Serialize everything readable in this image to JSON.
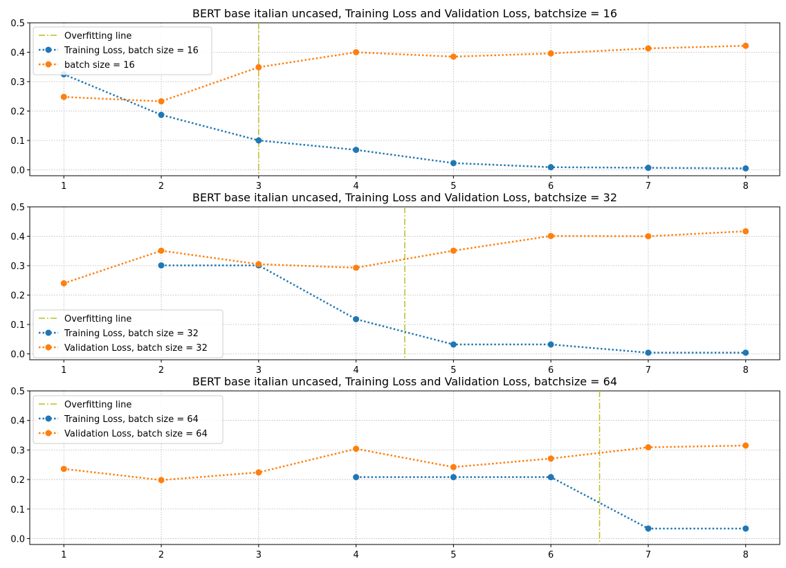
{
  "chart_data": [
    {
      "type": "line",
      "title": "BERT base italian uncased, Training Loss and Validation Loss, batchsize = 16",
      "xlabel": "",
      "ylabel": "",
      "xlim": [
        0.65,
        8.35
      ],
      "ylim": [
        -0.02,
        0.5
      ],
      "xticks": [
        1,
        2,
        3,
        4,
        5,
        6,
        7,
        8
      ],
      "yticks": [
        0.0,
        0.1,
        0.2,
        0.3,
        0.4,
        0.5
      ],
      "grid": true,
      "legend_position": "top-left",
      "overfitting_line": {
        "name": "Overfitting line",
        "x": 3,
        "color": "#bcbd22"
      },
      "series": [
        {
          "name": "Training Loss, batch size = 16",
          "color": "#1f77b4",
          "x": [
            1,
            2,
            3,
            4,
            5,
            6,
            7,
            8
          ],
          "values": [
            0.325,
            0.187,
            0.1,
            0.068,
            0.023,
            0.009,
            0.007,
            0.005
          ]
        },
        {
          "name": "batch size = 16",
          "color": "#ff7f0e",
          "x": [
            1,
            2,
            3,
            4,
            5,
            6,
            7,
            8
          ],
          "values": [
            0.248,
            0.233,
            0.349,
            0.4,
            0.385,
            0.396,
            0.413,
            0.422
          ]
        }
      ]
    },
    {
      "type": "line",
      "title": "BERT base italian uncased, Training Loss and Validation Loss, batchsize = 32",
      "xlabel": "",
      "ylabel": "",
      "xlim": [
        0.65,
        8.35
      ],
      "ylim": [
        -0.02,
        0.5
      ],
      "xticks": [
        1,
        2,
        3,
        4,
        5,
        6,
        7,
        8
      ],
      "yticks": [
        0.0,
        0.1,
        0.2,
        0.3,
        0.4,
        0.5
      ],
      "grid": true,
      "legend_position": "lower-left",
      "overfitting_line": {
        "name": "Overfitting line",
        "x": 4.5,
        "color": "#bcbd22"
      },
      "series": [
        {
          "name": "Training Loss, batch size = 32",
          "color": "#1f77b4",
          "x": [
            2,
            3,
            4,
            5,
            6,
            7,
            8
          ],
          "values": [
            0.301,
            0.301,
            0.118,
            0.032,
            0.032,
            0.004,
            0.004
          ]
        },
        {
          "name": "Validation Loss, batch size = 32",
          "color": "#ff7f0e",
          "x": [
            1,
            2,
            3,
            4,
            5,
            6,
            7,
            8
          ],
          "values": [
            0.24,
            0.351,
            0.305,
            0.293,
            0.351,
            0.401,
            0.4,
            0.417
          ]
        }
      ]
    },
    {
      "type": "line",
      "title": "BERT base italian uncased, Training Loss and Validation Loss, batchsize = 64",
      "xlabel": "",
      "ylabel": "",
      "xlim": [
        0.65,
        8.35
      ],
      "ylim": [
        -0.02,
        0.5
      ],
      "xticks": [
        1,
        2,
        3,
        4,
        5,
        6,
        7,
        8
      ],
      "yticks": [
        0.0,
        0.1,
        0.2,
        0.3,
        0.4,
        0.5
      ],
      "grid": true,
      "legend_position": "top-left",
      "overfitting_line": {
        "name": "Overfitting line",
        "x": 6.5,
        "color": "#bcbd22"
      },
      "series": [
        {
          "name": "Training Loss, batch size = 64",
          "color": "#1f77b4",
          "x": [
            4,
            5,
            6,
            7,
            8
          ],
          "values": [
            0.208,
            0.208,
            0.208,
            0.034,
            0.034
          ]
        },
        {
          "name": "Validation Loss, batch size = 64",
          "color": "#ff7f0e",
          "x": [
            1,
            2,
            3,
            4,
            5,
            6,
            7,
            8
          ],
          "values": [
            0.236,
            0.198,
            0.224,
            0.304,
            0.242,
            0.271,
            0.309,
            0.315
          ]
        }
      ]
    }
  ]
}
